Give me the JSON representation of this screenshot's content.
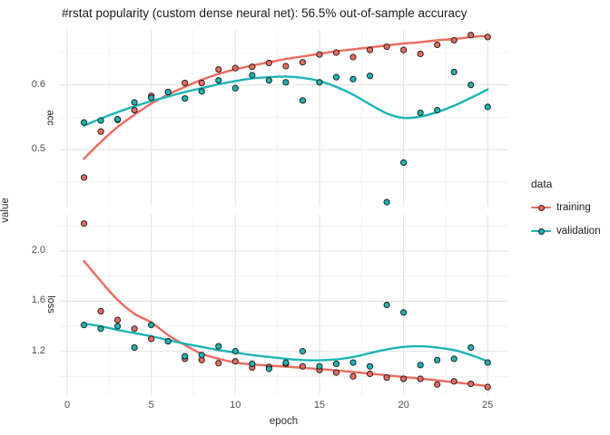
{
  "title": "#rstat popularity (custom dense neural net): 56.5% out-of-sample accuracy",
  "axes": {
    "y_title": "value",
    "x_title": "epoch",
    "x_ticks": [
      0,
      5,
      10,
      15,
      20,
      25
    ],
    "x_tick_labels": [
      "0",
      "5",
      "10",
      "15",
      "20",
      "25"
    ],
    "x_minor_ticks": [
      2.5,
      7.5,
      12.5,
      17.5,
      22.5
    ],
    "x_range": [
      -0.49,
      26.26
    ]
  },
  "legend": {
    "title": "data",
    "entries": [
      {
        "label": "training",
        "color": "#ee6a5e"
      },
      {
        "label": "validation",
        "color": "#1cb4b4"
      }
    ]
  },
  "colors": {
    "training": "#ee6a5e",
    "validation": "#1cb4b4",
    "grid_major": "#e3e3e3",
    "grid_minor": "#f1f1f1",
    "point_outline": "#222222",
    "background": "#ffffff"
  },
  "chart_data": [
    {
      "type": "scatter",
      "facet": "acc",
      "xlabel": "epoch",
      "ylabel": "value",
      "x": [
        1,
        2,
        3,
        4,
        5,
        6,
        7,
        8,
        9,
        10,
        11,
        12,
        13,
        14,
        15,
        16,
        17,
        18,
        19,
        20,
        21,
        22,
        23,
        24,
        25
      ],
      "series": [
        {
          "name": "training",
          "role": "points",
          "values": [
            0.457,
            0.528,
            0.546,
            0.561,
            0.583,
            0.589,
            0.603,
            0.603,
            0.624,
            0.626,
            0.628,
            0.634,
            0.629,
            0.635,
            0.647,
            0.65,
            0.643,
            0.654,
            0.659,
            0.654,
            0.648,
            0.662,
            0.669,
            0.677,
            0.674
          ]
        },
        {
          "name": "validation",
          "role": "points",
          "values": [
            0.542,
            0.545,
            0.547,
            0.573,
            0.58,
            0.589,
            0.579,
            0.59,
            0.607,
            0.595,
            0.615,
            0.607,
            0.604,
            0.576,
            0.604,
            0.612,
            0.609,
            0.614,
            0.419,
            0.48,
            0.557,
            0.561,
            0.62,
            0.6,
            0.566
          ]
        },
        {
          "name": "training",
          "role": "smooth",
          "values": [
            0.486,
            0.512,
            0.535,
            0.554,
            0.571,
            0.585,
            0.597,
            0.608,
            0.617,
            0.624,
            0.63,
            0.635,
            0.64,
            0.644,
            0.648,
            0.652,
            0.655,
            0.658,
            0.661,
            0.664,
            0.666,
            0.669,
            0.671,
            0.674,
            0.676
          ]
        },
        {
          "name": "validation",
          "role": "smooth",
          "values": [
            0.537,
            0.548,
            0.558,
            0.567,
            0.575,
            0.582,
            0.589,
            0.595,
            0.601,
            0.606,
            0.61,
            0.612,
            0.613,
            0.611,
            0.606,
            0.597,
            0.585,
            0.57,
            0.556,
            0.549,
            0.551,
            0.558,
            0.568,
            0.58,
            0.593
          ]
        }
      ],
      "ylim": [
        0.412,
        0.685
      ],
      "yticks": [
        0.6,
        0.5
      ],
      "ytick_labels": [
        "0.6",
        "0.5"
      ],
      "yticks_minor": [
        0.45,
        0.55,
        0.65
      ],
      "grid": true
    },
    {
      "type": "scatter",
      "facet": "loss",
      "xlabel": "epoch",
      "ylabel": "value",
      "x": [
        1,
        2,
        3,
        4,
        5,
        6,
        7,
        8,
        9,
        10,
        11,
        12,
        13,
        14,
        15,
        16,
        17,
        18,
        19,
        20,
        21,
        22,
        23,
        24,
        25
      ],
      "series": [
        {
          "name": "training",
          "role": "points",
          "values": [
            2.22,
            1.52,
            1.45,
            1.38,
            1.3,
            1.28,
            1.14,
            1.13,
            1.105,
            1.12,
            1.07,
            1.075,
            1.1,
            1.08,
            1.05,
            1.03,
            1.0,
            1.02,
            0.99,
            0.98,
            0.98,
            0.935,
            0.96,
            0.94,
            0.915
          ]
        },
        {
          "name": "validation",
          "role": "points",
          "values": [
            1.41,
            1.38,
            1.4,
            1.23,
            1.41,
            1.28,
            1.16,
            1.17,
            1.24,
            1.2,
            1.1,
            1.06,
            1.11,
            1.2,
            1.08,
            1.1,
            1.11,
            1.08,
            1.57,
            1.51,
            1.09,
            1.13,
            1.14,
            1.23,
            1.11
          ]
        },
        {
          "name": "training",
          "role": "smooth",
          "values": [
            1.92,
            1.76,
            1.61,
            1.5,
            1.43,
            1.33,
            1.25,
            1.18,
            1.14,
            1.11,
            1.095,
            1.085,
            1.078,
            1.068,
            1.058,
            1.047,
            1.035,
            1.022,
            1.008,
            0.995,
            0.982,
            0.968,
            0.953,
            0.938,
            0.922
          ]
        },
        {
          "name": "validation",
          "role": "smooth",
          "values": [
            1.42,
            1.4,
            1.37,
            1.345,
            1.32,
            1.29,
            1.26,
            1.235,
            1.21,
            1.19,
            1.17,
            1.155,
            1.14,
            1.13,
            1.128,
            1.135,
            1.155,
            1.185,
            1.215,
            1.235,
            1.24,
            1.23,
            1.21,
            1.17,
            1.12
          ]
        }
      ],
      "ylim": [
        0.85,
        2.29
      ],
      "yticks": [
        2.0,
        1.6,
        1.2
      ],
      "ytick_labels": [
        "2.0",
        "1.6",
        "1.2"
      ],
      "yticks_minor": [
        1.0,
        1.4,
        1.8,
        2.2
      ],
      "grid": true
    }
  ]
}
